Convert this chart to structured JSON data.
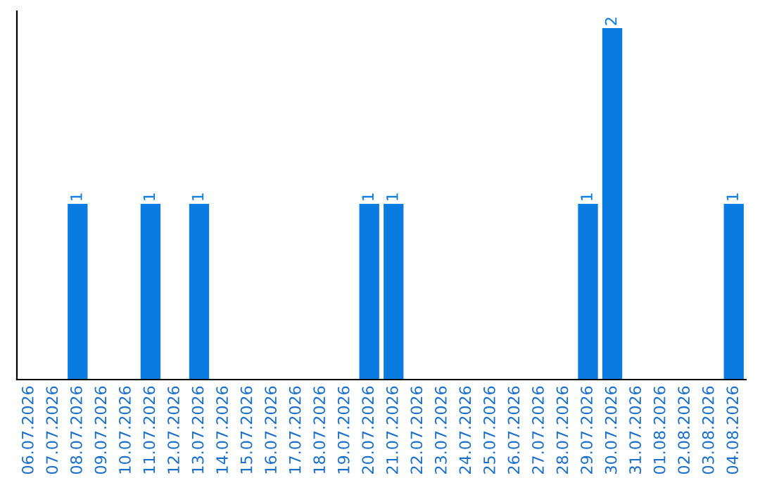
{
  "chart_data": {
    "type": "bar",
    "categories": [
      "06.07.2026",
      "07.07.2026",
      "08.07.2026",
      "09.07.2026",
      "10.07.2026",
      "11.07.2026",
      "12.07.2026",
      "13.07.2026",
      "14.07.2026",
      "15.07.2026",
      "16.07.2026",
      "17.07.2026",
      "18.07.2026",
      "19.07.2026",
      "20.07.2026",
      "21.07.2026",
      "22.07.2026",
      "23.07.2026",
      "24.07.2026",
      "25.07.2026",
      "26.07.2026",
      "27.07.2026",
      "28.07.2026",
      "29.07.2026",
      "30.07.2026",
      "31.07.2026",
      "01.08.2026",
      "02.08.2026",
      "03.08.2026",
      "04.08.2026"
    ],
    "values": [
      0,
      0,
      1,
      0,
      0,
      1,
      0,
      1,
      0,
      0,
      0,
      0,
      0,
      0,
      1,
      1,
      0,
      0,
      0,
      0,
      0,
      0,
      0,
      1,
      2,
      0,
      0,
      0,
      0,
      1
    ],
    "color": "#0a7be0",
    "value_labels": [
      null,
      null,
      "1",
      null,
      null,
      "1",
      null,
      "1",
      null,
      null,
      null,
      null,
      null,
      null,
      "1",
      "1",
      null,
      null,
      null,
      null,
      null,
      null,
      null,
      "1",
      "2",
      null,
      null,
      null,
      null,
      "1"
    ],
    "tick_labels": "x",
    "grid": false,
    "legend": false
  }
}
